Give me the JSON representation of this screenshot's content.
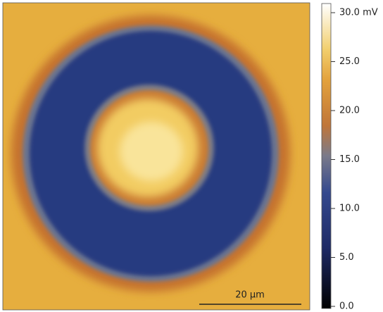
{
  "image": {
    "scale_bar": "20 µm"
  },
  "colorbar": {
    "lim": [
      0,
      30
    ],
    "ticks": [
      {
        "value": 0,
        "label": "0.0"
      },
      {
        "value": 5,
        "label": "5.0"
      },
      {
        "value": 10,
        "label": "10.0"
      },
      {
        "value": 15,
        "label": "15.0"
      },
      {
        "value": 20,
        "label": "20.0"
      },
      {
        "value": 25,
        "label": "25.0"
      },
      {
        "value": 30,
        "label": "30.0 mV"
      }
    ]
  }
}
